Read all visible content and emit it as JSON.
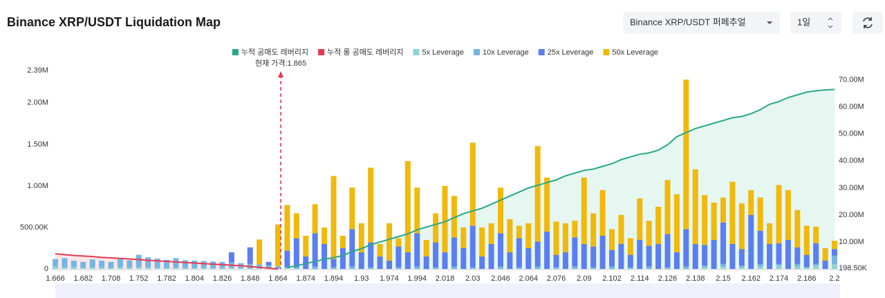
{
  "header": {
    "title": "Binance XRP/USDT Liquidation Map",
    "pair_select": "Binance XRP/USDT 퍼페추얼",
    "range_select": "1일"
  },
  "chart_data": {
    "type": "bar",
    "categories": [
      "1.666",
      null,
      null,
      "1.682",
      null,
      null,
      "1.708",
      null,
      null,
      "1.752",
      null,
      null,
      "1.782",
      null,
      null,
      "1.804",
      null,
      null,
      "1.826",
      null,
      null,
      "1.848",
      null,
      null,
      "1.864",
      null,
      null,
      "1.874",
      null,
      null,
      "1.894",
      null,
      null,
      "1.93",
      null,
      null,
      "1.974",
      null,
      null,
      "1.994",
      null,
      null,
      "2.018",
      null,
      null,
      "2.03",
      null,
      null,
      "2.046",
      null,
      null,
      "2.064",
      null,
      null,
      "2.076",
      null,
      null,
      "2.09",
      null,
      null,
      "2.102",
      null,
      null,
      "2.114",
      null,
      null,
      "2.126",
      null,
      null,
      "2.138",
      null,
      null,
      "2.15",
      null,
      null,
      "2.162",
      null,
      null,
      "2.174",
      null,
      null,
      "2.186",
      null,
      null,
      "2.2"
    ],
    "series": [
      {
        "name": "누적 공매도 레버리지",
        "type": "line",
        "axis": "y2",
        "color": "#26a889",
        "area": "#e3f5ef",
        "values": [
          null,
          null,
          null,
          null,
          null,
          null,
          null,
          null,
          null,
          null,
          null,
          null,
          null,
          null,
          null,
          null,
          null,
          null,
          null,
          null,
          null,
          null,
          null,
          null,
          null,
          500000,
          1200000,
          2000000,
          2800000,
          3600000,
          4200000,
          5000000,
          6500000,
          7500000,
          9000000,
          10000000,
          11000000,
          12000000,
          13000000,
          14500000,
          15500000,
          16500000,
          17500000,
          19000000,
          20500000,
          21500000,
          22500000,
          24000000,
          25500000,
          27000000,
          28500000,
          30000000,
          31000000,
          32000000,
          33000000,
          34500000,
          35500000,
          36500000,
          37000000,
          38000000,
          39000000,
          40500000,
          41500000,
          42500000,
          43000000,
          44000000,
          46000000,
          49000000,
          50500000,
          52000000,
          53000000,
          54000000,
          55000000,
          56000000,
          56500000,
          57500000,
          59000000,
          61000000,
          62000000,
          63500000,
          64500000,
          65500000,
          66000000,
          66300000,
          66500000
        ]
      },
      {
        "name": "누적 롱 공매도 레버리지",
        "type": "line",
        "axis": "y2",
        "color": "#e8384f",
        "area": "#fbe3e6",
        "values": [
          5600000,
          5300000,
          5000000,
          4800000,
          4600000,
          4300000,
          4100000,
          3900000,
          3700000,
          3500000,
          3200000,
          3000000,
          2800000,
          2600000,
          2400000,
          2200000,
          2000000,
          1800000,
          1600000,
          1400000,
          1200000,
          900000,
          600000,
          300000,
          0,
          null,
          null,
          null,
          null,
          null,
          null,
          null,
          null,
          null,
          null,
          null,
          null,
          null,
          null,
          null,
          null,
          null,
          null,
          null,
          null,
          null,
          null,
          null,
          null,
          null,
          null,
          null,
          null,
          null,
          null,
          null,
          null,
          null,
          null,
          null,
          null,
          null,
          null,
          null,
          null,
          null,
          null,
          null,
          null,
          null,
          null,
          null,
          null,
          null,
          null,
          null,
          null,
          null,
          null,
          null,
          null,
          null,
          null,
          null,
          null
        ]
      },
      {
        "name": "5x Leverage",
        "type": "bar",
        "color": "#8fd3d3",
        "values": [
          30000,
          20000,
          20000,
          15000,
          20000,
          15000,
          10000,
          20000,
          15000,
          20000,
          20000,
          15000,
          10000,
          15000,
          10000,
          10000,
          10000,
          10000,
          10000,
          10000,
          10000,
          5000,
          5000,
          5000,
          5000,
          20000,
          0,
          0,
          0,
          0,
          0,
          0,
          0,
          0,
          0,
          0,
          0,
          0,
          0,
          0,
          0,
          0,
          0,
          0,
          0,
          0,
          0,
          0,
          0,
          0,
          0,
          0,
          0,
          0,
          0,
          0,
          0,
          0,
          0,
          0,
          0,
          0,
          0,
          0,
          0,
          0,
          0,
          0,
          0,
          0,
          20000,
          0,
          30000,
          0,
          20000,
          0,
          30000,
          0,
          40000,
          0,
          30000,
          20000,
          40000,
          0,
          60000
        ]
      },
      {
        "name": "10x Leverage",
        "type": "bar",
        "color": "#74b6e3",
        "values": [
          90000,
          110000,
          80000,
          70000,
          95000,
          85000,
          75000,
          100000,
          90000,
          150000,
          120000,
          110000,
          100000,
          115000,
          95000,
          90000,
          85000,
          80000,
          75000,
          70000,
          60000,
          55000,
          50000,
          40000,
          30000,
          0,
          20000,
          0,
          30000,
          0,
          20000,
          0,
          30000,
          0,
          20000,
          0,
          0,
          20000,
          0,
          30000,
          0,
          20000,
          0,
          30000,
          0,
          20000,
          0,
          0,
          30000,
          0,
          20000,
          0,
          30000,
          0,
          20000,
          0,
          30000,
          0,
          20000,
          0,
          30000,
          0,
          20000,
          0,
          30000,
          0,
          20000,
          0,
          30000,
          0,
          20000,
          0,
          30000,
          0,
          20000,
          0,
          30000,
          0,
          20000,
          0,
          30000,
          0,
          20000,
          0,
          100000
        ]
      },
      {
        "name": "25x Leverage",
        "type": "bar",
        "color": "#5b7ef0",
        "values": [
          0,
          0,
          0,
          0,
          0,
          0,
          0,
          0,
          0,
          0,
          0,
          0,
          0,
          0,
          0,
          0,
          0,
          0,
          0,
          120000,
          0,
          200000,
          0,
          40000,
          0,
          200000,
          350000,
          150000,
          400000,
          300000,
          100000,
          250000,
          450000,
          200000,
          300000,
          150000,
          100000,
          250000,
          200000,
          400000,
          150000,
          300000,
          200000,
          350000,
          250000,
          500000,
          150000,
          300000,
          400000,
          200000,
          350000,
          250000,
          300000,
          450000,
          150000,
          200000,
          350000,
          300000,
          250000,
          400000,
          200000,
          300000,
          150000,
          350000,
          250000,
          300000,
          400000,
          200000,
          450000,
          300000,
          250000,
          350000,
          500000,
          300000,
          200000,
          650000,
          400000,
          300000,
          250000,
          350000,
          200000,
          150000,
          250000,
          100000,
          80000
        ]
      },
      {
        "name": "50x Leverage",
        "type": "bar",
        "color": "#f0b90b",
        "values": [
          0,
          0,
          0,
          0,
          0,
          0,
          0,
          0,
          0,
          0,
          0,
          0,
          0,
          0,
          0,
          0,
          0,
          0,
          0,
          0,
          0,
          0,
          300000,
          0,
          500000,
          550000,
          300000,
          250000,
          350000,
          200000,
          1000000,
          150000,
          500000,
          350000,
          900000,
          150000,
          450000,
          100000,
          1100000,
          550000,
          200000,
          350000,
          800000,
          500000,
          250000,
          1000000,
          350000,
          250000,
          550000,
          400000,
          150000,
          300000,
          1150000,
          650000,
          400000,
          350000,
          200000,
          800000,
          400000,
          550000,
          250000,
          350000,
          200000,
          500000,
          300000,
          450000,
          650000,
          700000,
          1800000,
          900000,
          600000,
          450000,
          300000,
          750000,
          550000,
          300000,
          400000,
          250000,
          700000,
          600000,
          450000,
          350000,
          200000,
          150000,
          100000
        ]
      }
    ],
    "ylim": [
      0,
      2390000
    ],
    "yticks": [
      0,
      {
        "value": 500000,
        "label": "500.00K"
      },
      {
        "value": 1000000,
        "label": "1.00M"
      },
      {
        "value": 1500000,
        "label": "1.50M"
      },
      {
        "value": 2000000,
        "label": "2.00M"
      },
      {
        "value": 2390000,
        "label": "2.39M"
      }
    ],
    "y2lim": [
      0,
      73500000
    ],
    "y2ticks": [
      {
        "value": 198500,
        "label": "198.50K"
      },
      {
        "value": 10000000,
        "label": "10.00M"
      },
      {
        "value": 20000000,
        "label": "20.00M"
      },
      {
        "value": 30000000,
        "label": "30.00M"
      },
      {
        "value": 40000000,
        "label": "40.00M"
      },
      {
        "value": 50000000,
        "label": "50.00M"
      },
      {
        "value": 60000000,
        "label": "60.00M"
      },
      {
        "value": 70000000,
        "label": "70.00M"
      }
    ],
    "annotation": {
      "text": "현재 가격:1.865",
      "value": 1.865
    },
    "grid": false
  }
}
